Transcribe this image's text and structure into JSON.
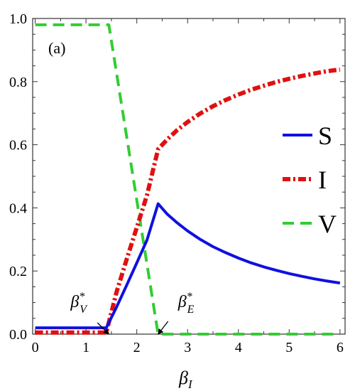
{
  "chart_data": {
    "type": "line",
    "panel_label": "(a)",
    "xlabel": "β",
    "xlabel_sub": "I",
    "ylabel": "",
    "xlim": [
      -0.05,
      6.1
    ],
    "ylim": [
      0,
      1.0
    ],
    "xticks": [
      0,
      1,
      2,
      3,
      4,
      5,
      6
    ],
    "yticks": [
      0.0,
      0.2,
      0.4,
      0.6,
      0.8,
      1.0
    ],
    "ytick_labels": [
      "0.0",
      "0.2",
      "0.4",
      "0.6",
      "0.8",
      "1.0"
    ],
    "grid": false,
    "legend_position": "right",
    "colors": {
      "S": "#1010e0",
      "I": "#e01010",
      "V": "#33cc33"
    },
    "series": [
      {
        "name": "S",
        "style": "solid",
        "x": [
          0,
          1.4,
          1.6,
          1.8,
          2.0,
          2.2,
          2.42,
          2.6,
          2.8,
          3.0,
          3.25,
          3.5,
          3.75,
          4.0,
          4.25,
          4.5,
          4.75,
          5.0,
          5.25,
          5.5,
          5.75,
          6.0
        ],
        "y": [
          0.02,
          0.02,
          0.085,
          0.155,
          0.226,
          0.298,
          0.413,
          0.38,
          0.352,
          0.327,
          0.3,
          0.277,
          0.258,
          0.241,
          0.226,
          0.213,
          0.202,
          0.192,
          0.183,
          0.175,
          0.168,
          0.162
        ]
      },
      {
        "name": "I",
        "style": "dashdot",
        "x": [
          0,
          1.4,
          1.6,
          1.8,
          2.0,
          2.2,
          2.42,
          2.6,
          2.8,
          3.0,
          3.25,
          3.5,
          3.75,
          4.0,
          4.25,
          4.5,
          4.75,
          5.0,
          5.25,
          5.5,
          5.75,
          6.0
        ],
        "y": [
          0.005,
          0.005,
          0.132,
          0.237,
          0.338,
          0.44,
          0.586,
          0.617,
          0.647,
          0.672,
          0.699,
          0.722,
          0.742,
          0.759,
          0.774,
          0.787,
          0.799,
          0.809,
          0.818,
          0.826,
          0.833,
          0.838
        ]
      },
      {
        "name": "V",
        "style": "dashed",
        "x": [
          0,
          1.45,
          2.42,
          6.0
        ],
        "y": [
          0.98,
          0.98,
          0.0,
          0.0
        ]
      }
    ],
    "annotations": [
      {
        "base": "β",
        "sup": "*",
        "sub": "V",
        "x": 1.45,
        "y": 0.0
      },
      {
        "base": "β",
        "sup": "*",
        "sub": "E",
        "x": 2.42,
        "y": 0.0
      }
    ]
  }
}
